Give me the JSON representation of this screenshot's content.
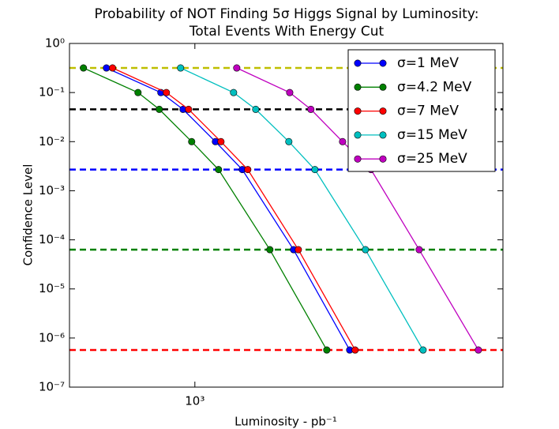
{
  "chart_data": {
    "type": "line",
    "title": "Probability of NOT Finding 5σ Higgs Signal by Luminosity:",
    "subtitle": "Total Events With Energy Cut",
    "xlabel": "Luminosity - pb⁻¹",
    "ylabel": "Confidence Level",
    "log_x": true,
    "log_y": true,
    "xlim": [
      400,
      9500
    ],
    "ylim": [
      1e-07,
      1
    ],
    "xticks": [
      {
        "value": 1000,
        "label": "10³"
      }
    ],
    "yticks": [
      {
        "value": 1e-07,
        "label": "10⁻⁷"
      },
      {
        "value": 1e-06,
        "label": "10⁻⁶"
      },
      {
        "value": 1e-05,
        "label": "10⁻⁵"
      },
      {
        "value": 0.0001,
        "label": "10⁻⁴"
      },
      {
        "value": 0.001,
        "label": "10⁻³"
      },
      {
        "value": 0.01,
        "label": "10⁻²"
      },
      {
        "value": 0.1,
        "label": "10⁻¹"
      },
      {
        "value": 1,
        "label": "10⁰"
      }
    ],
    "legend": "upper right",
    "hlines": [
      {
        "value": 0.317,
        "color": "#bfbf00"
      },
      {
        "value": 0.0455,
        "color": "#000000"
      },
      {
        "value": 0.0027,
        "color": "#0000ff"
      },
      {
        "value": 6.3e-05,
        "color": "#008000"
      },
      {
        "value": 5.7e-07,
        "color": "#ff0000"
      }
    ],
    "series": [
      {
        "name": "σ=1 MeV",
        "color": "#0000ff",
        "x": [
          524,
          780,
          917,
          1162,
          1414,
          2057,
          3100
        ],
        "values": [
          0.317,
          0.1,
          0.0455,
          0.01,
          0.0027,
          6.3e-05,
          5.7e-07
        ]
      },
      {
        "name": "σ=4.2 MeV",
        "color": "#008000",
        "x": [
          443,
          660,
          771,
          977,
          1189,
          1730,
          2622
        ],
        "values": [
          0.317,
          0.1,
          0.0455,
          0.01,
          0.0027,
          6.3e-05,
          5.7e-07
        ]
      },
      {
        "name": "σ=7 MeV",
        "color": "#ff0000",
        "x": [
          548,
          812,
          955,
          1210,
          1472,
          2130,
          3226
        ],
        "values": [
          0.317,
          0.1,
          0.0455,
          0.01,
          0.0027,
          6.3e-05,
          5.7e-07
        ]
      },
      {
        "name": "σ=15 MeV",
        "color": "#00bfbf",
        "x": [
          901,
          1327,
          1560,
          1987,
          2404,
          3478,
          5300
        ],
        "values": [
          0.317,
          0.1,
          0.0455,
          0.01,
          0.0027,
          6.3e-05,
          5.7e-07
        ]
      },
      {
        "name": "σ=25 MeV",
        "color": "#bf00bf",
        "x": [
          1358,
          2000,
          2334,
          2943,
          3622,
          5150,
          7940
        ],
        "values": [
          0.317,
          0.1,
          0.0455,
          0.01,
          0.0027,
          6.3e-05,
          5.7e-07
        ]
      }
    ]
  }
}
